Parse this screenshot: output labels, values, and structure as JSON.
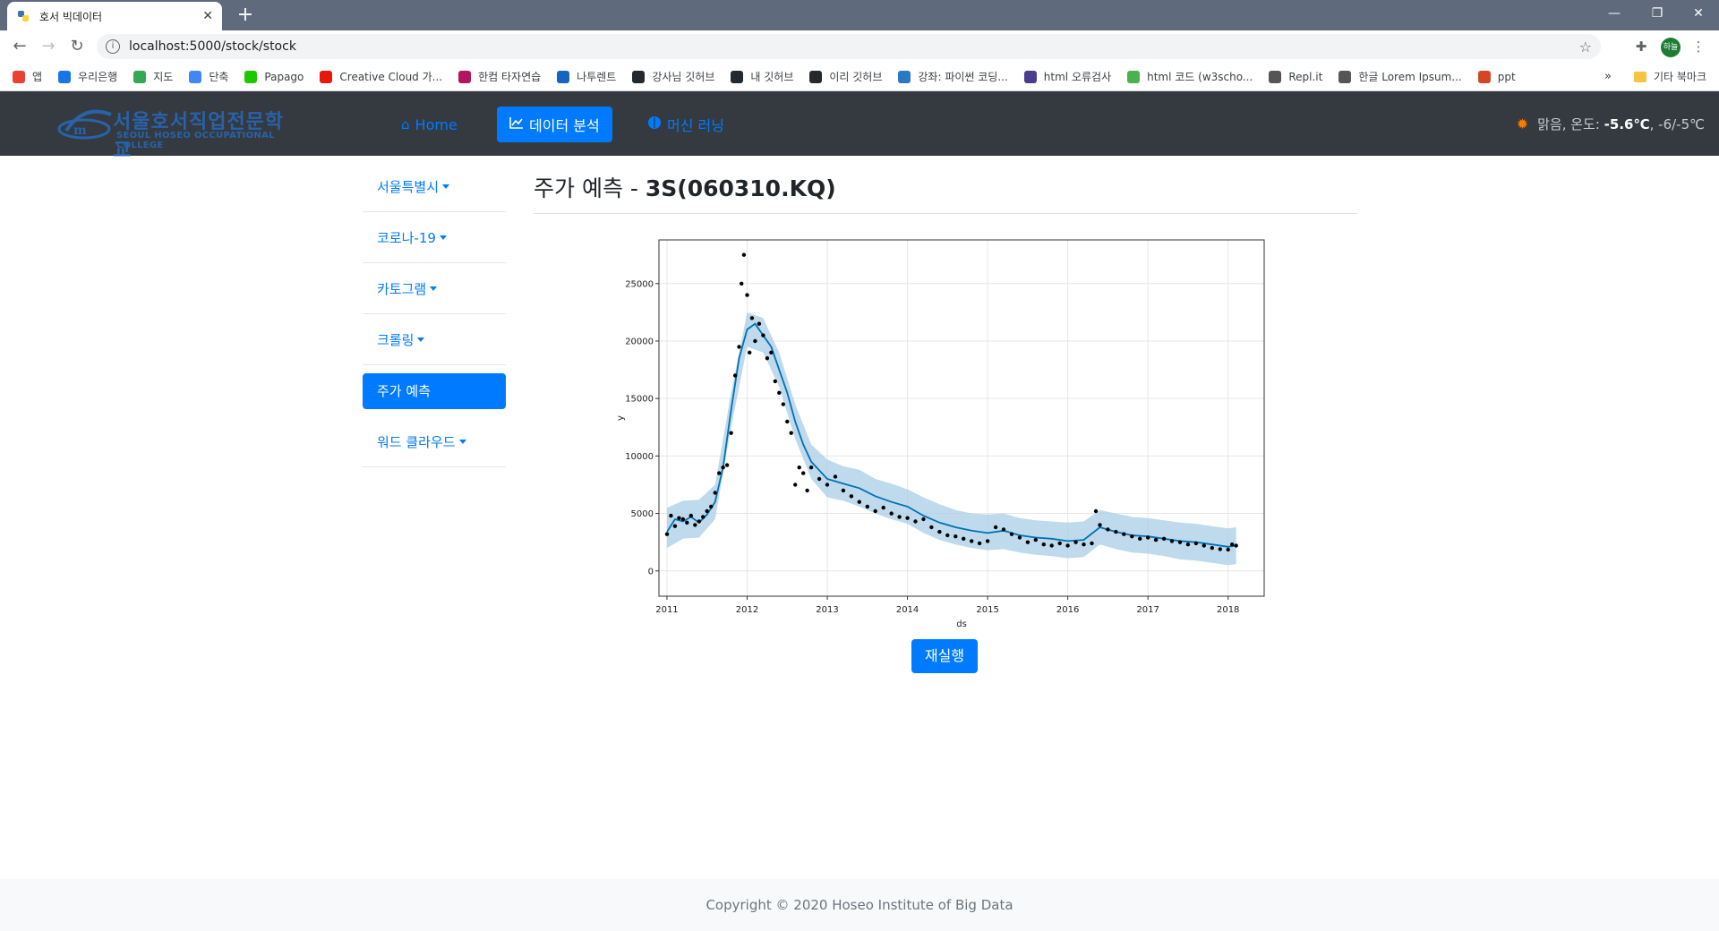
{
  "browser": {
    "tab_title": "호서 빅데이터",
    "url": "localhost:5000/stock/stock",
    "bookmarks": [
      {
        "label": "앱",
        "icon": "apps-grid-icon",
        "color": "#e94235"
      },
      {
        "label": "우리은행",
        "icon": "woori-bank-icon",
        "color": "#1a73e8"
      },
      {
        "label": "지도",
        "icon": "maps-pin-icon",
        "color": "#34a853"
      },
      {
        "label": "단축",
        "icon": "google-g-icon",
        "color": "#4285f4"
      },
      {
        "label": "Papago",
        "icon": "papago-icon",
        "color": "#1ec800"
      },
      {
        "label": "Creative Cloud 가...",
        "icon": "adobe-icon",
        "color": "#e8170a"
      },
      {
        "label": "한컴 타자연습",
        "icon": "hancom-icon",
        "color": "#b0155e"
      },
      {
        "label": "나투렌트",
        "icon": "bookmark-icon",
        "color": "#1565c0"
      },
      {
        "label": "강사님 깃허브",
        "icon": "github-icon",
        "color": "#24292e"
      },
      {
        "label": "내 깃허브",
        "icon": "github-icon",
        "color": "#24292e"
      },
      {
        "label": "이리 깃허브",
        "icon": "github-icon",
        "color": "#24292e"
      },
      {
        "label": "강좌: 파이썬 코딩...",
        "icon": "course-icon",
        "color": "#2b78c5"
      },
      {
        "label": "html 오류검사",
        "icon": "w3c-icon",
        "color": "#4a3d8f"
      },
      {
        "label": "html 코드 (w3scho...",
        "icon": "w3schools-icon",
        "color": "#4caf50"
      },
      {
        "label": "Repl.it",
        "icon": "replit-icon",
        "color": "#555555"
      },
      {
        "label": "한글 Lorem Ipsum...",
        "icon": "globe-icon",
        "color": "#555555"
      },
      {
        "label": "ppt",
        "icon": "powerpoint-icon",
        "color": "#d24726"
      }
    ],
    "more_label": "»",
    "other_bookmarks": "기타 북마크",
    "profile_initials": "하늘"
  },
  "header": {
    "logo_korean": "서울호서직업전문학교",
    "logo_english": "SEOUL HOSEO OCCUPATIONAL COLLEGE",
    "nav": [
      {
        "label": "Home",
        "icon": "home-icon"
      },
      {
        "label": "데이터 분석",
        "icon": "chart-line-icon"
      },
      {
        "label": "머신 러닝",
        "icon": "brain-icon"
      }
    ],
    "weather": {
      "condition": "맑음, 온도:",
      "temp": "-5.6℃",
      "range": ", -6/-5℃"
    }
  },
  "sidebar": {
    "items": [
      {
        "label": "서울특별시"
      },
      {
        "label": "코로나-19"
      },
      {
        "label": "카토그램"
      },
      {
        "label": "크롤링"
      },
      {
        "label": "주가 예측"
      },
      {
        "label": "워드 클라우드"
      }
    ]
  },
  "main": {
    "title_prefix": "주가 예측 - ",
    "title_code": "3S(060310.KQ)",
    "rerun_label": "재실행"
  },
  "chart_data": {
    "type": "line",
    "title": "",
    "xlabel": "ds",
    "ylabel": "y",
    "xlim": [
      2010.9,
      2018.45
    ],
    "ylim": [
      -2200,
      28800
    ],
    "x_ticks": [
      "2011",
      "2012",
      "2013",
      "2014",
      "2015",
      "2016",
      "2017",
      "2018"
    ],
    "y_ticks": [
      "0",
      "5000",
      "10000",
      "15000",
      "20000",
      "25000"
    ],
    "grid": true,
    "colors": {
      "forecast": "#0072b2",
      "band": "#a8cde6",
      "observed": "#000000"
    },
    "series": [
      {
        "role": "forecast",
        "x": [
          2011.0,
          2011.1,
          2011.2,
          2011.3,
          2011.4,
          2011.5,
          2011.6,
          2011.7,
          2011.8,
          2011.9,
          2012.0,
          2012.1,
          2012.2,
          2012.3,
          2012.4,
          2012.5,
          2012.6,
          2012.7,
          2012.8,
          2013.0,
          2013.2,
          2013.4,
          2013.6,
          2013.8,
          2014.0,
          2014.2,
          2014.4,
          2014.6,
          2014.8,
          2015.0,
          2015.2,
          2015.4,
          2015.6,
          2015.8,
          2016.0,
          2016.2,
          2016.4,
          2016.6,
          2016.8,
          2017.0,
          2017.2,
          2017.4,
          2017.6,
          2017.8,
          2018.0,
          2018.1
        ],
        "values": [
          3400,
          4500,
          4300,
          4700,
          4200,
          4900,
          6000,
          9000,
          14000,
          18500,
          21000,
          21500,
          20500,
          19500,
          17500,
          15500,
          13000,
          11000,
          9500,
          8000,
          7600,
          7200,
          6500,
          6000,
          5600,
          4800,
          4200,
          3800,
          3500,
          3300,
          3500,
          3100,
          2900,
          2800,
          2600,
          2700,
          3800,
          3400,
          3100,
          3000,
          2800,
          2600,
          2500,
          2300,
          2100,
          2200
        ]
      },
      {
        "role": "observed",
        "x": [
          2011.0,
          2011.05,
          2011.1,
          2011.15,
          2011.2,
          2011.25,
          2011.3,
          2011.35,
          2011.4,
          2011.45,
          2011.5,
          2011.55,
          2011.6,
          2011.65,
          2011.7,
          2011.75,
          2011.8,
          2011.85,
          2011.9,
          2011.93,
          2011.96,
          2012.0,
          2012.03,
          2012.06,
          2012.1,
          2012.15,
          2012.2,
          2012.25,
          2012.3,
          2012.35,
          2012.4,
          2012.45,
          2012.5,
          2012.55,
          2012.6,
          2012.65,
          2012.7,
          2012.75,
          2012.8,
          2012.9,
          2013.0,
          2013.1,
          2013.2,
          2013.3,
          2013.4,
          2013.5,
          2013.6,
          2013.7,
          2013.8,
          2013.9,
          2014.0,
          2014.1,
          2014.2,
          2014.3,
          2014.4,
          2014.5,
          2014.6,
          2014.7,
          2014.8,
          2014.9,
          2015.0,
          2015.1,
          2015.2,
          2015.3,
          2015.4,
          2015.5,
          2015.6,
          2015.7,
          2015.8,
          2015.9,
          2016.0,
          2016.1,
          2016.2,
          2016.3,
          2016.35,
          2016.4,
          2016.5,
          2016.6,
          2016.7,
          2016.8,
          2016.9,
          2017.0,
          2017.1,
          2017.2,
          2017.3,
          2017.4,
          2017.5,
          2017.6,
          2017.7,
          2017.8,
          2017.9,
          2018.0,
          2018.05,
          2018.1
        ],
        "values": [
          3200,
          4800,
          3900,
          4600,
          4500,
          4200,
          4800,
          4000,
          4300,
          4700,
          5200,
          5600,
          6800,
          8500,
          9000,
          9200,
          12000,
          17000,
          19500,
          25000,
          27500,
          24000,
          19000,
          22000,
          20000,
          21500,
          20500,
          18500,
          19000,
          16500,
          15500,
          14500,
          13000,
          12000,
          7500,
          9000,
          8500,
          7000,
          9000,
          8000,
          7500,
          8200,
          7000,
          6500,
          6000,
          5600,
          5200,
          5500,
          5000,
          4700,
          4600,
          4300,
          4500,
          3800,
          3400,
          3100,
          3000,
          2800,
          2600,
          2400,
          2600,
          3800,
          3600,
          3200,
          2900,
          2500,
          2700,
          2300,
          2200,
          2400,
          2200,
          2500,
          2300,
          2400,
          5200,
          4000,
          3600,
          3400,
          3200,
          3000,
          2800,
          2900,
          2700,
          2800,
          2600,
          2500,
          2300,
          2400,
          2200,
          2000,
          1900,
          1850,
          2300,
          2200
        ]
      }
    ],
    "band": {
      "x": [
        2011.0,
        2011.2,
        2011.4,
        2011.6,
        2011.8,
        2012.0,
        2012.2,
        2012.4,
        2012.6,
        2012.8,
        2013.0,
        2013.2,
        2013.4,
        2013.6,
        2013.8,
        2014.0,
        2014.2,
        2014.4,
        2014.6,
        2014.8,
        2015.0,
        2015.2,
        2015.4,
        2015.6,
        2015.8,
        2016.0,
        2016.2,
        2016.4,
        2016.6,
        2016.8,
        2017.0,
        2017.2,
        2017.4,
        2017.6,
        2017.8,
        2018.0,
        2018.1
      ],
      "upper": [
        5500,
        6100,
        6200,
        7500,
        15500,
        22500,
        22000,
        19000,
        14500,
        11000,
        9700,
        9100,
        8800,
        8000,
        7600,
        7100,
        6400,
        5800,
        5300,
        5000,
        4900,
        5000,
        4600,
        4400,
        4300,
        4200,
        4300,
        5300,
        5000,
        4700,
        4600,
        4400,
        4200,
        4100,
        3900,
        3700,
        3800
      ],
      "lower": [
        2000,
        2800,
        2900,
        4500,
        12500,
        19500,
        19000,
        16000,
        11500,
        8000,
        6400,
        6100,
        5600,
        5000,
        4500,
        4100,
        3300,
        2700,
        2300,
        2000,
        1800,
        1900,
        1600,
        1400,
        1300,
        1100,
        1200,
        2300,
        1900,
        1600,
        1500,
        1300,
        1000,
        900,
        700,
        500,
        600
      ]
    }
  },
  "footer": {
    "copyright": "Copyright © 2020 Hoseo Institute of Big Data"
  }
}
